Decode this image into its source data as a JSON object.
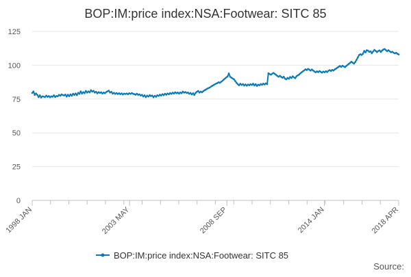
{
  "chart_data": {
    "type": "line",
    "title": "BOP:IM:price index:NSA:Footwear: SITC 85",
    "xlabel": "",
    "ylabel": "",
    "ylim": [
      0,
      125
    ],
    "yticks": [
      0,
      25,
      50,
      75,
      100,
      125
    ],
    "x_tick_labels": [
      "1998 JAN",
      "2003 MAY",
      "2008 SEP",
      "2014 JAN",
      "2018 APR"
    ],
    "legend_position": "bottom",
    "source_label": "Source:",
    "colors": {
      "series": "#0a79b5",
      "grid": "#e6e6e6",
      "axis": "#c0c0c0",
      "text": "#555555",
      "title": "#333333"
    },
    "series": [
      {
        "name": "BOP:IM:price index:NSA:Footwear: SITC 85",
        "start": "1998 JAN",
        "frequency": "monthly",
        "values": [
          79.5,
          80.6,
          78.0,
          79.2,
          78.1,
          76.4,
          77.8,
          76.1,
          77.0,
          76.8,
          76.4,
          77.5,
          76.6,
          77.2,
          76.3,
          77.0,
          76.7,
          77.8,
          76.5,
          77.3,
          77.0,
          78.1,
          77.4,
          78.4,
          78.0,
          77.6,
          78.3,
          76.8,
          78.2,
          77.1,
          78.5,
          77.4,
          78.9,
          78.0,
          79.1,
          77.9,
          79.6,
          78.8,
          80.7,
          79.0,
          80.1,
          79.3,
          81.0,
          79.8,
          80.6,
          79.9,
          81.5,
          80.5,
          81.1,
          79.8,
          80.4,
          79.2,
          80.1,
          79.5,
          80.0,
          79.1,
          79.8,
          79.3,
          80.2,
          80.7,
          81.2,
          79.8,
          80.3,
          79.0,
          79.6,
          78.8,
          79.5,
          78.7,
          79.3,
          78.6,
          79.2,
          78.4,
          79.0,
          78.7,
          79.1,
          78.5,
          79.3,
          78.8,
          79.4,
          78.9,
          78.6,
          78.2,
          79.0,
          78.1,
          78.5,
          77.6,
          78.1,
          76.9,
          77.8,
          76.4,
          77.5,
          76.8,
          77.9,
          77.2,
          77.6,
          76.3,
          77.4,
          76.7,
          77.8,
          77.3,
          78.2,
          77.6,
          78.6,
          77.9,
          78.9,
          78.2,
          79.1,
          78.5,
          79.4,
          78.8,
          79.7,
          79.1,
          80.0,
          79.3,
          79.8,
          79.0,
          79.9,
          79.3,
          80.5,
          79.7,
          80.2,
          79.5,
          79.8,
          78.9,
          79.5,
          78.4,
          79.3,
          78.0,
          79.6,
          80.4,
          81.0,
          79.8,
          80.5,
          80.0,
          80.8,
          81.5,
          82.0,
          82.6,
          83.1,
          83.5,
          84.2,
          84.8,
          85.3,
          85.9,
          86.4,
          86.8,
          87.4,
          87.0,
          87.8,
          88.5,
          89.4,
          90.2,
          91.0,
          91.7,
          94.0,
          91.5,
          90.8,
          90.2,
          89.6,
          88.3,
          87.0,
          86.0,
          85.2,
          86.3,
          85.4,
          86.1,
          85.0,
          85.8,
          84.9,
          85.7,
          85.2,
          86.0,
          85.4,
          86.3,
          85.1,
          86.0,
          84.7,
          85.6,
          85.2,
          86.1,
          85.5,
          86.4,
          85.8,
          86.6,
          86.0,
          94.1,
          93.5,
          93.0,
          93.8,
          94.3,
          93.6,
          92.9,
          92.1,
          91.5,
          92.2,
          91.4,
          90.8,
          91.5,
          90.1,
          89.6,
          90.7,
          90.0,
          91.3,
          90.6,
          91.8,
          91.1,
          90.4,
          91.9,
          92.5,
          93.1,
          94.0,
          94.8,
          95.5,
          96.2,
          97.0,
          96.4,
          97.3,
          96.8,
          96.0,
          96.9,
          96.1,
          95.4,
          94.8,
          95.5,
          94.9,
          95.7,
          95.1,
          94.6,
          95.3,
          94.8,
          95.6,
          95.0,
          95.9,
          96.4,
          95.8,
          96.6,
          96.1,
          97.0,
          97.5,
          98.2,
          98.9,
          99.5,
          98.8,
          99.7,
          99.1,
          98.6,
          99.5,
          100.3,
          101.0,
          101.8,
          102.6,
          101.9,
          101.2,
          102.4,
          104.0,
          105.8,
          107.5,
          108.2,
          107.6,
          108.5,
          110.6,
          109.5,
          111.1,
          110.8,
          109.9,
          110.3,
          108.9,
          110.2,
          111.4,
          110.6,
          109.7,
          110.5,
          111.0,
          109.8,
          110.9,
          111.6,
          112.0,
          111.2,
          110.4,
          111.1,
          110.3,
          109.6,
          110.0,
          109.3,
          108.8,
          109.2,
          108.5,
          108.0
        ]
      }
    ]
  }
}
